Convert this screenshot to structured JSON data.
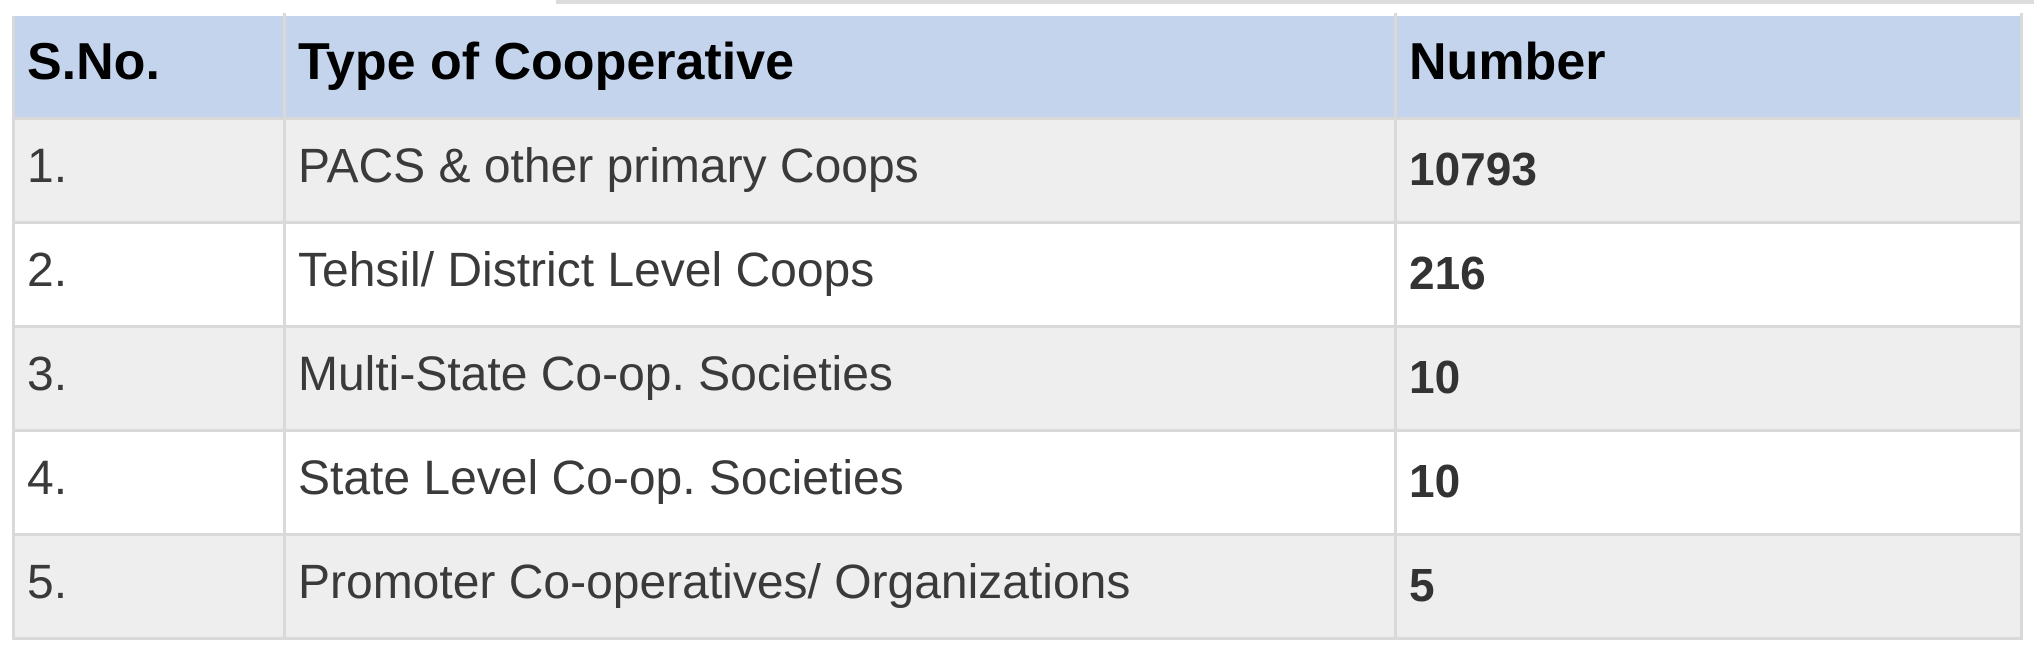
{
  "page": {
    "background": "#ffffff",
    "top_divider_color": "#dcdcdc"
  },
  "table": {
    "columns": [
      {
        "key": "sno",
        "label": "S.No."
      },
      {
        "key": "type",
        "label": "Type of Cooperative"
      },
      {
        "key": "number",
        "label": "Number"
      }
    ],
    "rows": [
      {
        "sno": "1.",
        "type": "PACS & other primary Coops",
        "number": "10793"
      },
      {
        "sno": "2.",
        "type": "Tehsil/ District Level Coops",
        "number": "216"
      },
      {
        "sno": "3.",
        "type": "Multi-State Co-op. Societies",
        "number": "10"
      },
      {
        "sno": "4.",
        "type": "State Level Co-op. Societies",
        "number": "10"
      },
      {
        "sno": "5.",
        "type": "Promoter Co-operatives/ Organizations",
        "number": "5"
      }
    ],
    "colors": {
      "header_bg": "#c3d4ec",
      "row_odd_bg": "#eeeeee",
      "row_even_bg": "#ffffff",
      "border": "#d9d9d9",
      "header_text": "#000000",
      "body_text": "#3a3a3a",
      "number_text": "#333333"
    }
  },
  "chart_data": {
    "type": "table",
    "title": "",
    "columns": [
      "S.No.",
      "Type of Cooperative",
      "Number"
    ],
    "rows": [
      [
        "1.",
        "PACS & other primary Coops",
        10793
      ],
      [
        "2.",
        "Tehsil/ District Level Coops",
        216
      ],
      [
        "3.",
        "Multi-State Co-op. Societies",
        10
      ],
      [
        "4.",
        "State Level Co-op. Societies",
        10
      ],
      [
        "5.",
        "Promoter Co-operatives/ Organizations",
        5
      ]
    ]
  }
}
